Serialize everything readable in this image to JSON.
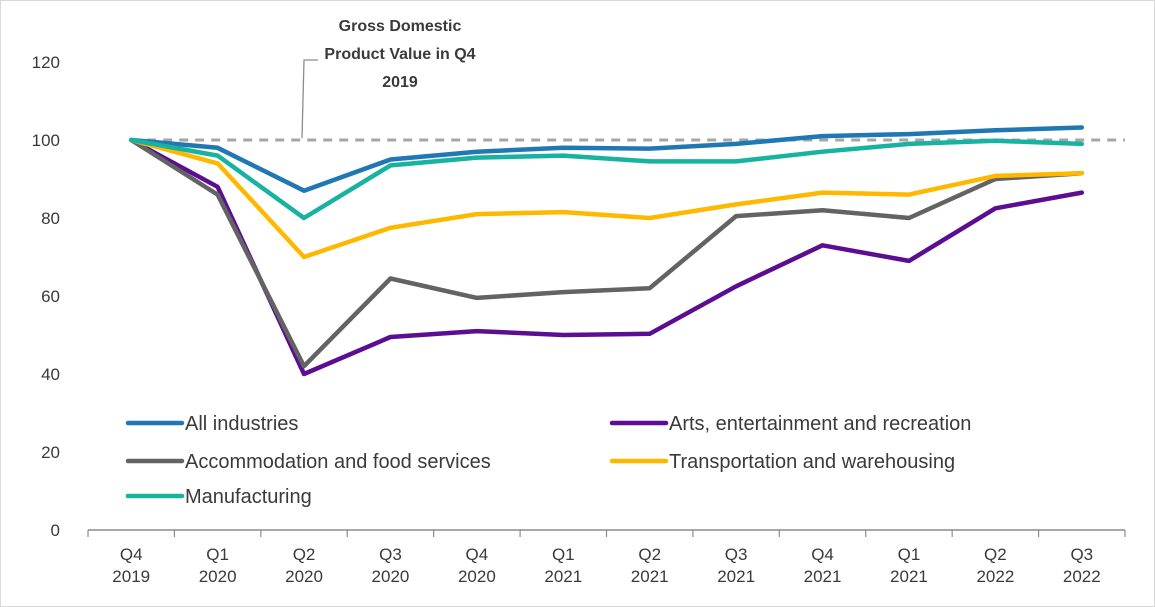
{
  "chart_data": {
    "type": "line",
    "title": "",
    "xlabel": "",
    "ylabel": "",
    "ylim": [
      0,
      120
    ],
    "yticks": [
      "0",
      "20",
      "40",
      "60",
      "80",
      "100",
      "120"
    ],
    "categories": [
      [
        "Q4",
        "2019"
      ],
      [
        "Q1",
        "2020"
      ],
      [
        "Q2",
        "2020"
      ],
      [
        "Q3",
        "2020"
      ],
      [
        "Q4",
        "2020"
      ],
      [
        "Q1",
        "2021"
      ],
      [
        "Q2",
        "2021"
      ],
      [
        "Q3",
        "2021"
      ],
      [
        "Q4",
        "2021"
      ],
      [
        "Q1",
        "2021"
      ],
      [
        "Q2",
        "2022"
      ],
      [
        "Q3",
        "2022"
      ]
    ],
    "grid": false,
    "legend_position": "bottom-inside",
    "reference_line": {
      "value": 100,
      "color": "#A6A6A6",
      "style": "dashed",
      "annotation": [
        "Gross Domestic",
        "Product Value in Q4",
        "2019"
      ]
    },
    "series": [
      {
        "name": "All industries",
        "color": "#1F77B4",
        "values": [
          100,
          98,
          87,
          95,
          97,
          98,
          97.8,
          99,
          101,
          101.5,
          102.5,
          103.2
        ]
      },
      {
        "name": "Arts, entertainment and recreation",
        "color": "#5B0E91",
        "values": [
          100,
          88,
          40,
          49.5,
          51,
          50,
          50.3,
          62.5,
          73,
          69,
          82.5,
          86.5
        ]
      },
      {
        "name": "Accommodation and food services",
        "color": "#636363",
        "values": [
          100,
          86,
          42,
          64.5,
          59.5,
          61,
          62,
          80.5,
          82,
          80,
          90,
          91.5
        ]
      },
      {
        "name": "Transportation and warehousing",
        "color": "#FFB800",
        "values": [
          100,
          94,
          70,
          77.5,
          81,
          81.5,
          80,
          83.5,
          86.5,
          86,
          90.8,
          91.5
        ]
      },
      {
        "name": "Manufacturing",
        "color": "#17B2A0",
        "values": [
          100,
          96,
          80,
          93.5,
          95.5,
          96,
          94.5,
          94.5,
          97,
          99,
          99.8,
          99
        ]
      }
    ]
  }
}
